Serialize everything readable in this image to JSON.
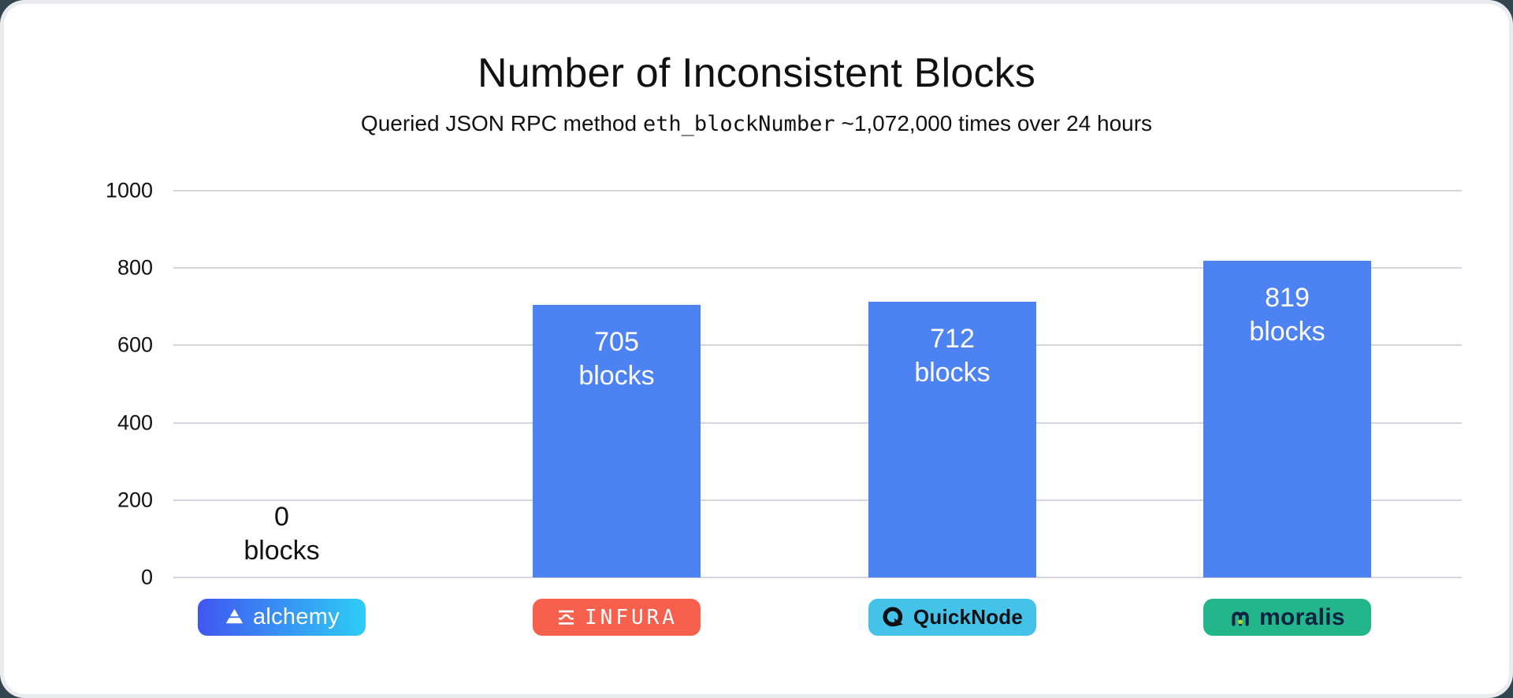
{
  "page": {
    "title": "Number of Inconsistent Blocks",
    "subtitle": {
      "prefix": "Queried JSON RPC method ",
      "code": "eth_blockNumber",
      "suffix": " ~1,072,000 times over 24 hours"
    }
  },
  "chart_data": {
    "type": "bar",
    "title": "Number of Inconsistent Blocks",
    "subtitle": "Queried JSON RPC method eth_blockNumber ~1,072,000 times over 24 hours",
    "categories": [
      "alchemy",
      "INFURA",
      "QuickNode",
      "moralis"
    ],
    "values": [
      0,
      705,
      712,
      819
    ],
    "unit": "blocks",
    "bar_labels": [
      "0 blocks",
      "705 blocks",
      "712 blocks",
      "819 blocks"
    ],
    "ylim": [
      0,
      1000
    ],
    "yticks": [
      1000,
      800,
      600,
      400,
      200,
      0
    ],
    "grid": true,
    "legend": "none",
    "bar_color": "#4d82f3",
    "bar_label_color_inside": "#ffffff",
    "bar_label_color_outside": "#111111",
    "gridline_color": "#d3d7dd",
    "badges": [
      {
        "text": "alchemy",
        "bg_start": "#4156f1",
        "bg_end": "#2ecdf6",
        "text_color": "#ffffff"
      },
      {
        "text": "INFURA",
        "bg": "#f6604d",
        "text_color": "#ffffff"
      },
      {
        "text": "QuickNode",
        "bg": "#45c2e9",
        "text_color": "#101114"
      },
      {
        "text": "moralis",
        "bg": "#22b68a",
        "text_color": "#0d2240",
        "logo_dot_color": "#bdd62f"
      }
    ]
  }
}
